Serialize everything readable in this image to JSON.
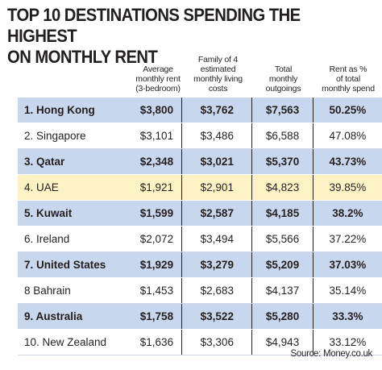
{
  "chart_data": {
    "type": "table",
    "title_lines": [
      "TOP 10 DESTINATIONS SPENDING THE HIGHEST",
      "ON MONTHLY RENT"
    ],
    "columns": [
      "",
      "Average monthly rent (3-bedroom)",
      "Family of 4 estimated monthly living costs",
      "Total monthly outgoings",
      "Rent as % of total monthly spend"
    ],
    "column_lines": [
      [],
      [
        "Average",
        "monthly rent",
        "(3-bedroom)"
      ],
      [
        "Family of 4",
        "estimated",
        "monthly living",
        "costs"
      ],
      [
        "Total",
        "monthly",
        "outgoings"
      ],
      [
        "Rent as %",
        "of total",
        "monthly spend"
      ]
    ],
    "rows": [
      {
        "style": "blue",
        "cells": [
          "1. Hong Kong",
          "$3,800",
          "$3,762",
          "$7,563",
          "50.25%"
        ]
      },
      {
        "style": "plain",
        "cells": [
          "2. Singapore",
          "$3,101",
          "$3,486",
          "$6,588",
          "47.08%"
        ]
      },
      {
        "style": "blue",
        "cells": [
          "3. Qatar",
          "$2,348",
          "$3,021",
          "$5,370",
          "43.73%"
        ]
      },
      {
        "style": "yellow",
        "cells": [
          "4. UAE",
          "$1,921",
          "$2,901",
          "$4,823",
          "39.85%"
        ]
      },
      {
        "style": "blue",
        "cells": [
          "5. Kuwait",
          "$1,599",
          "$2,587",
          "$4,185",
          "38.2%"
        ]
      },
      {
        "style": "plain",
        "cells": [
          "6. Ireland",
          "$2,072",
          "$3,494",
          "$5,566",
          "37.22%"
        ]
      },
      {
        "style": "blue",
        "cells": [
          "7. United States",
          "$1,929",
          "$3,279",
          "$5,209",
          "37.03%"
        ]
      },
      {
        "style": "plain",
        "cells": [
          "8 Bahrain",
          "$1,453",
          "$2,683",
          "$4,137",
          "35.14%"
        ]
      },
      {
        "style": "blue",
        "cells": [
          "9. Australia",
          "$1,758",
          "$3,522",
          "$5,280",
          "33.3%"
        ]
      },
      {
        "style": "plain",
        "cells": [
          "10. New Zealand",
          "$1,636",
          "$3,306",
          "$4,943",
          "33.12%"
        ]
      }
    ],
    "source": "Source: Money.co.uk"
  },
  "colors": {
    "highlight_blue": "#c9d7ee",
    "highlight_yellow": "#fdf2c4",
    "text": "#231f20"
  }
}
